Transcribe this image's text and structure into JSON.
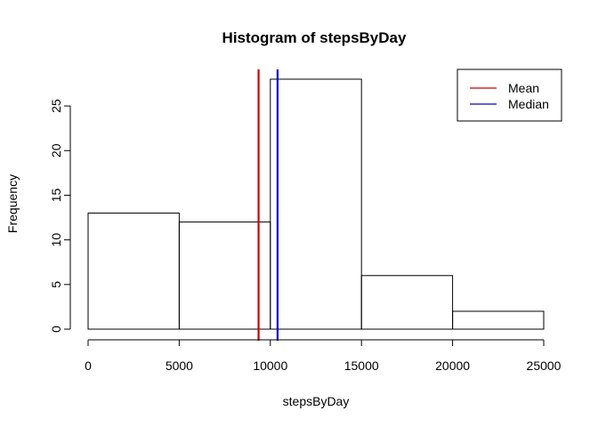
{
  "chart_data": {
    "type": "bar",
    "title": "Histogram of stepsByDay",
    "xlabel": "stepsByDay",
    "ylabel": "Frequency",
    "bins": [
      {
        "start": 0,
        "end": 5000,
        "count": 13
      },
      {
        "start": 5000,
        "end": 10000,
        "count": 12
      },
      {
        "start": 10000,
        "end": 15000,
        "count": 28
      },
      {
        "start": 15000,
        "end": 20000,
        "count": 6
      },
      {
        "start": 20000,
        "end": 25000,
        "count": 2
      }
    ],
    "xlim": [
      0,
      25000
    ],
    "ylim": [
      0,
      28
    ],
    "x_ticks": [
      {
        "value": 0,
        "label": "0"
      },
      {
        "value": 5000,
        "label": "5000"
      },
      {
        "value": 10000,
        "label": "10000"
      },
      {
        "value": 15000,
        "label": "15000"
      },
      {
        "value": 20000,
        "label": "20000"
      },
      {
        "value": 25000,
        "label": "25000"
      }
    ],
    "y_ticks": [
      {
        "value": 0,
        "label": "0"
      },
      {
        "value": 5,
        "label": "5"
      },
      {
        "value": 10,
        "label": "10"
      },
      {
        "value": 15,
        "label": "15"
      },
      {
        "value": 20,
        "label": "20"
      },
      {
        "value": 25,
        "label": "25"
      }
    ],
    "reference_lines": [
      {
        "name": "Mean",
        "value": 9354,
        "color": "#cc0000"
      },
      {
        "name": "Median",
        "value": 10395,
        "color": "#0000cc"
      }
    ],
    "legend": {
      "position": "top-right",
      "entries": [
        {
          "label": "Mean",
          "color": "#cc0000"
        },
        {
          "label": "Median",
          "color": "#0000cc"
        }
      ]
    },
    "grid": false
  }
}
